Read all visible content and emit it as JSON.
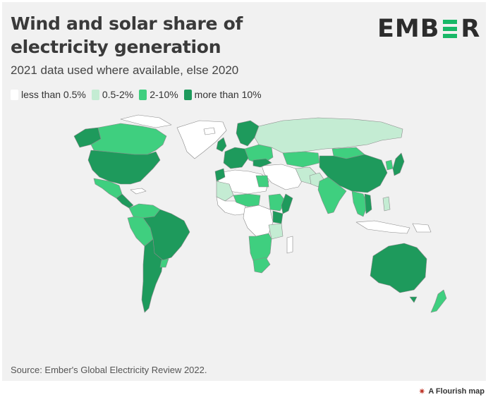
{
  "header": {
    "title": "Wind and solar share of electricity generation",
    "subtitle": "2021 data used where available, else 2020",
    "logo_text_left": "EMB",
    "logo_text_right": "R"
  },
  "legend": [
    {
      "label": "less than 0.5%",
      "color": "#ffffff"
    },
    {
      "label": "0.5-2%",
      "color": "#c4ecd3"
    },
    {
      "label": "2-10%",
      "color": "#3fcf7f"
    },
    {
      "label": "more than 10%",
      "color": "#1e9a5c"
    }
  ],
  "footer": {
    "source": "Source: Ember's Global Electricity Review 2022.",
    "credit": "A Flourish map"
  },
  "colors": {
    "background": "#f1f1f1",
    "accent": "#18b867",
    "border": "#8a8a8a"
  }
}
